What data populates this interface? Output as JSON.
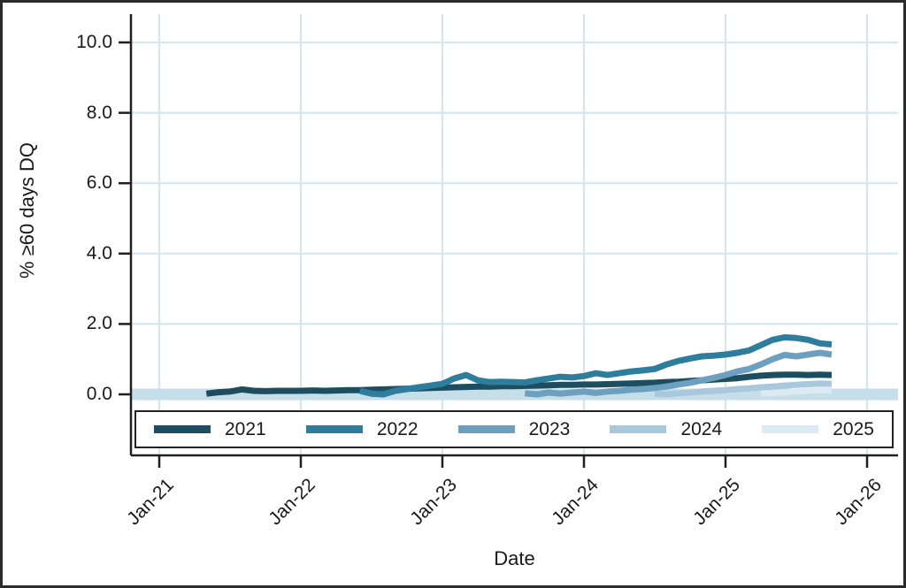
{
  "figure": {
    "ylabel": "% ≥60 days DQ",
    "xlabel": "Date",
    "background": "#ffffff",
    "border_color": "#2b2b2b",
    "axis_color": "#1f1f1f",
    "text_color": "#1a1a1a"
  },
  "chart_data": {
    "type": "line",
    "title": "",
    "xlabel": "Date",
    "ylabel": "% ≥60 days DQ",
    "grid": true,
    "gridline_color": "#d4e7f0",
    "zero_band_color": "#c6deea",
    "legend_position": "bottom-box",
    "ylim": [
      0,
      10.8
    ],
    "y_ticks": [
      {
        "label": "0.0",
        "value": 0
      },
      {
        "label": "2.0",
        "value": 2
      },
      {
        "label": "4.0",
        "value": 4
      },
      {
        "label": "6.0",
        "value": 6
      },
      {
        "label": "8.0",
        "value": 8
      },
      {
        "label": "10.0",
        "value": 10
      }
    ],
    "x_unit": "months since Jan-2021, monthly data",
    "x_ticks": [
      {
        "label": "Jan-21",
        "month": 0
      },
      {
        "label": "Jan-22",
        "month": 12
      },
      {
        "label": "Jan-23",
        "month": 24
      },
      {
        "label": "Jan-24",
        "month": 36
      },
      {
        "label": "Jan-25",
        "month": 48
      },
      {
        "label": "Jan-26",
        "month": 60
      }
    ],
    "series": [
      {
        "name": "2021",
        "color": "#1d4e60",
        "start_month": 4,
        "values": [
          0.02,
          0.06,
          0.08,
          0.14,
          0.1,
          0.09,
          0.1,
          0.1,
          0.1,
          0.11,
          0.1,
          0.11,
          0.12,
          0.12,
          0.13,
          0.14,
          0.15,
          0.16,
          0.17,
          0.18,
          0.19,
          0.2,
          0.21,
          0.22,
          0.22,
          0.23,
          0.23,
          0.24,
          0.25,
          0.26,
          0.27,
          0.27,
          0.28,
          0.28,
          0.29,
          0.3,
          0.31,
          0.32,
          0.33,
          0.35,
          0.36,
          0.38,
          0.4,
          0.42,
          0.44,
          0.46,
          0.5,
          0.53,
          0.55,
          0.56,
          0.56,
          0.55,
          0.56,
          0.55
        ]
      },
      {
        "name": "2022",
        "color": "#2e7d9d",
        "start_month": 17,
        "values": [
          0.1,
          0.02,
          0.0,
          0.1,
          0.15,
          0.2,
          0.25,
          0.3,
          0.45,
          0.55,
          0.4,
          0.35,
          0.36,
          0.35,
          0.34,
          0.4,
          0.45,
          0.5,
          0.48,
          0.52,
          0.6,
          0.55,
          0.6,
          0.65,
          0.68,
          0.72,
          0.85,
          0.95,
          1.02,
          1.08,
          1.1,
          1.13,
          1.18,
          1.25,
          1.4,
          1.55,
          1.62,
          1.6,
          1.55,
          1.45,
          1.42
        ]
      },
      {
        "name": "2023",
        "color": "#6da0bf",
        "start_month": 31,
        "values": [
          0.03,
          0.0,
          0.05,
          0.02,
          0.05,
          0.08,
          0.04,
          0.08,
          0.1,
          0.13,
          0.15,
          0.18,
          0.22,
          0.28,
          0.33,
          0.4,
          0.47,
          0.55,
          0.65,
          0.72,
          0.85,
          1.0,
          1.12,
          1.08,
          1.13,
          1.18,
          1.13
        ]
      },
      {
        "name": "2024",
        "color": "#aac8db",
        "start_month": 42,
        "values": [
          0.02,
          0.0,
          0.03,
          0.05,
          0.08,
          0.1,
          0.12,
          0.15,
          0.17,
          0.2,
          0.22,
          0.25,
          0.27,
          0.29,
          0.31,
          0.3
        ]
      },
      {
        "name": "2025",
        "color": "#dceaf3",
        "start_month": 51,
        "values": [
          0.02,
          0.04,
          0.05,
          0.08,
          0.1,
          0.12,
          0.12
        ]
      }
    ]
  }
}
